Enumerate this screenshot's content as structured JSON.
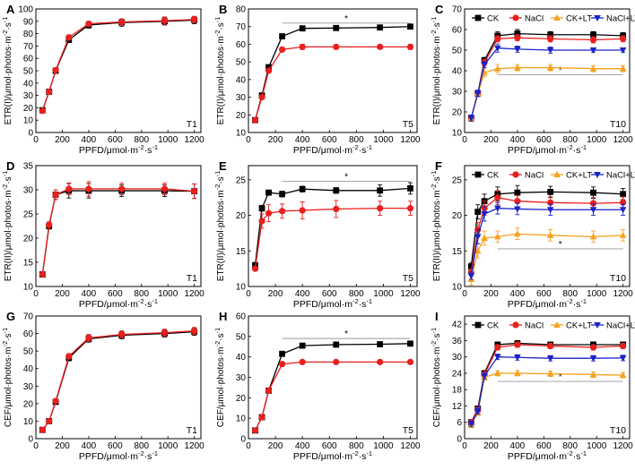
{
  "figure": {
    "colors": {
      "CK": "#000000",
      "NaCl": "#e8201e",
      "CK+LT": "#f5a21f",
      "NaCl+LT": "#1a23c8"
    },
    "markers": {
      "CK": "square",
      "NaCl": "circle",
      "CK+LT": "triangle-up",
      "NaCl+LT": "triangle-down"
    }
  },
  "chart_data": [
    {
      "id": "A",
      "type": "line",
      "panel_label": "A",
      "treatment_label": "T1",
      "xlabel": "PPFD/μmol·m⁻²·s⁻¹",
      "ylabel": "ETR(I)/μmol·photos·m⁻²·s⁻¹",
      "xlim": [
        0,
        1250
      ],
      "ylim": [
        0,
        100
      ],
      "xticks": [
        0,
        200,
        400,
        600,
        800,
        1000,
        1200
      ],
      "yticks": [
        0,
        10,
        20,
        30,
        40,
        50,
        60,
        70,
        80,
        90,
        100
      ],
      "x": [
        50,
        100,
        150,
        250,
        400,
        650,
        975,
        1200
      ],
      "series": [
        {
          "name": "CK",
          "values": [
            18,
            33,
            50,
            75,
            87,
            89,
            90,
            91
          ],
          "errors": [
            1,
            1.5,
            1.5,
            2,
            2.5,
            3,
            3,
            3
          ]
        },
        {
          "name": "NaCl",
          "values": [
            17.5,
            33,
            50.5,
            77,
            88,
            89.5,
            90.5,
            91.5
          ],
          "errors": [
            1,
            1.5,
            1.5,
            2,
            2,
            2.5,
            3,
            2.5
          ]
        }
      ],
      "legend": [],
      "significance": null
    },
    {
      "id": "B",
      "type": "line",
      "panel_label": "B",
      "treatment_label": "T5",
      "xlabel": "PPFD/μmol·m⁻²·s⁻¹",
      "ylabel": "ETR(I)/μmol·photos·m⁻²·s⁻¹",
      "xlim": [
        0,
        1250
      ],
      "ylim": [
        10,
        80
      ],
      "xticks": [
        0,
        200,
        400,
        600,
        800,
        1000,
        1200
      ],
      "yticks": [
        10,
        20,
        30,
        40,
        50,
        60,
        70,
        80
      ],
      "x": [
        50,
        100,
        150,
        250,
        400,
        650,
        975,
        1200
      ],
      "series": [
        {
          "name": "CK",
          "values": [
            17,
            31,
            47,
            64.5,
            69,
            69.2,
            69.5,
            70
          ],
          "errors": [
            0.8,
            1,
            1,
            0.8,
            0.6,
            0.6,
            0.6,
            0.6
          ]
        },
        {
          "name": "NaCl",
          "values": [
            17,
            30,
            45,
            57,
            58.5,
            58.5,
            58.5,
            58.5
          ],
          "errors": [
            0.8,
            1,
            1,
            1.2,
            1.5,
            1.2,
            1.2,
            1.5
          ]
        }
      ],
      "legend": [],
      "significance": {
        "text": "*",
        "x_from": 250,
        "x_to": 1200,
        "y": 72
      }
    },
    {
      "id": "C",
      "type": "line",
      "panel_label": "C",
      "treatment_label": "T10",
      "xlabel": "PPFD/μmol·m⁻²·s⁻¹",
      "ylabel": "ETR(I)/μmol·photos·m⁻²·s⁻¹",
      "xlim": [
        0,
        1250
      ],
      "ylim": [
        10,
        70
      ],
      "xticks": [
        0,
        200,
        400,
        600,
        800,
        1000,
        1200
      ],
      "yticks": [
        10,
        20,
        30,
        40,
        50,
        60,
        70
      ],
      "x": [
        50,
        100,
        150,
        250,
        400,
        650,
        975,
        1200
      ],
      "series": [
        {
          "name": "CK",
          "values": [
            17,
            29,
            45,
            57,
            58,
            57.5,
            57.5,
            57
          ],
          "errors": [
            1.5,
            1.5,
            1.5,
            2,
            2,
            1.5,
            1.5,
            1.5
          ]
        },
        {
          "name": "NaCl",
          "values": [
            17,
            29,
            44,
            55.5,
            56,
            55.5,
            55,
            55.5
          ],
          "errors": [
            1.5,
            1.5,
            1.5,
            1.5,
            1.5,
            1.5,
            1.5,
            1.5
          ]
        },
        {
          "name": "CK+LT",
          "values": [
            17,
            29,
            39,
            41,
            41.5,
            41.5,
            41,
            41
          ],
          "errors": [
            1.5,
            1.5,
            2,
            2,
            1.5,
            1.5,
            1.5,
            1.5
          ]
        },
        {
          "name": "NaCl+LT",
          "values": [
            17,
            29,
            43,
            51,
            50.5,
            50,
            50,
            50
          ],
          "errors": [
            1.5,
            1.5,
            1.5,
            2,
            1.5,
            1.5,
            1,
            1
          ]
        }
      ],
      "legend": [
        "CK",
        "NaCl",
        "CK+LT",
        "NaCl+LT"
      ],
      "significance": {
        "text": "*",
        "x_from": 250,
        "x_to": 1200,
        "y": 38
      }
    },
    {
      "id": "D",
      "type": "line",
      "panel_label": "D",
      "treatment_label": "T1",
      "xlabel": "PPFD/μmol·m⁻²·s⁻¹",
      "ylabel": "ETR(II)/μmol·photos·m⁻²·s⁻¹",
      "xlim": [
        0,
        1250
      ],
      "ylim": [
        10,
        35
      ],
      "xticks": [
        0,
        200,
        400,
        600,
        800,
        1000,
        1200
      ],
      "yticks": [
        10,
        15,
        20,
        25,
        30,
        35
      ],
      "x": [
        50,
        100,
        150,
        250,
        400,
        650,
        975,
        1200
      ],
      "series": [
        {
          "name": "CK",
          "values": [
            12.5,
            22.5,
            29,
            29.8,
            29.8,
            29.8,
            29.8,
            29.7
          ],
          "errors": [
            0.3,
            0.6,
            1,
            1.5,
            1.5,
            1.2,
            1.2,
            1.5
          ]
        },
        {
          "name": "NaCl",
          "values": [
            12.5,
            22.8,
            29,
            30.2,
            30.2,
            30.2,
            30.2,
            29.7
          ],
          "errors": [
            0.3,
            0.6,
            1,
            1.2,
            1.5,
            1.2,
            1.2,
            1.5
          ]
        }
      ],
      "legend": [],
      "significance": null
    },
    {
      "id": "E",
      "type": "line",
      "panel_label": "E",
      "treatment_label": "T5",
      "xlabel": "PPFD/μmol·m⁻²·s⁻¹",
      "ylabel": "ETR(II)/μmol·photos·m⁻²·s⁻¹",
      "xlim": [
        0,
        1250
      ],
      "ylim": [
        10,
        27
      ],
      "xticks": [
        0,
        200,
        400,
        600,
        800,
        1000,
        1200
      ],
      "yticks": [
        10,
        15,
        20,
        25
      ],
      "x": [
        50,
        100,
        150,
        250,
        400,
        650,
        975,
        1200
      ],
      "series": [
        {
          "name": "CK",
          "values": [
            13,
            21,
            23.2,
            23,
            23.7,
            23.5,
            23.5,
            23.8
          ],
          "errors": [
            0.3,
            0.4,
            0.3,
            0.4,
            0.4,
            0.4,
            0.8,
            0.8
          ]
        },
        {
          "name": "NaCl",
          "values": [
            12.5,
            19.2,
            20.3,
            20.6,
            20.7,
            20.9,
            21,
            21
          ],
          "errors": [
            0.3,
            1,
            1.2,
            1,
            1.2,
            1.2,
            1,
            1
          ]
        }
      ],
      "legend": [],
      "significance": {
        "text": "*",
        "x_from": 250,
        "x_to": 1200,
        "y": 24.8
      }
    },
    {
      "id": "F",
      "type": "line",
      "panel_label": "F",
      "treatment_label": "T10",
      "xlabel": "PPFD/μmol·m⁻²·s⁻¹",
      "ylabel": "ETR(II)/μmol·photos·m⁻²·s⁻¹",
      "xlim": [
        0,
        1250
      ],
      "ylim": [
        10,
        27
      ],
      "xticks": [
        0,
        200,
        400,
        600,
        800,
        1000,
        1200
      ],
      "yticks": [
        10,
        15,
        20,
        25
      ],
      "x": [
        50,
        100,
        150,
        250,
        400,
        650,
        975,
        1200
      ],
      "series": [
        {
          "name": "CK",
          "values": [
            12.8,
            20.5,
            22,
            23,
            23.2,
            23.3,
            23.2,
            23
          ],
          "errors": [
            0.5,
            1,
            1,
            1,
            1,
            0.8,
            0.8,
            0.8
          ]
        },
        {
          "name": "NaCl",
          "values": [
            12,
            18,
            21,
            22.5,
            22,
            21.8,
            21.7,
            21.8
          ],
          "errors": [
            0.5,
            1,
            1,
            1,
            0.8,
            0.8,
            0.8,
            0.8
          ]
        },
        {
          "name": "CK+LT",
          "values": [
            11,
            15,
            16.8,
            17,
            17.4,
            17.2,
            17,
            17.2
          ],
          "errors": [
            0.8,
            1,
            1,
            0.8,
            0.8,
            0.8,
            0.8,
            0.8
          ]
        },
        {
          "name": "NaCl+LT",
          "values": [
            11.5,
            17,
            20.2,
            21,
            20.9,
            20.8,
            20.8,
            20.8
          ],
          "errors": [
            0.5,
            1,
            1,
            0.8,
            0.8,
            0.8,
            0.8,
            0.8
          ]
        }
      ],
      "legend": [
        "CK",
        "NaCl",
        "CK+LT",
        "NaCl+LT"
      ],
      "significance": {
        "text": "*",
        "x_from": 250,
        "x_to": 1200,
        "y": 15.3
      }
    },
    {
      "id": "G",
      "type": "line",
      "panel_label": "G",
      "treatment_label": "T1",
      "xlabel": "PPFD/μmol·m⁻²·s⁻¹",
      "ylabel": "CEF/μmol·photos·m⁻²·s⁻¹",
      "xlim": [
        0,
        1250
      ],
      "ylim": [
        0,
        70
      ],
      "xticks": [
        0,
        200,
        400,
        600,
        800,
        1000,
        1200
      ],
      "yticks": [
        0,
        10,
        20,
        30,
        40,
        50,
        60,
        70
      ],
      "x": [
        50,
        100,
        150,
        250,
        400,
        650,
        975,
        1200
      ],
      "series": [
        {
          "name": "CK",
          "values": [
            5,
            10,
            21,
            46,
            57,
            59,
            60,
            61
          ],
          "errors": [
            0.5,
            1,
            1,
            1.5,
            2,
            2,
            2,
            2
          ]
        },
        {
          "name": "NaCl",
          "values": [
            5,
            10,
            21.5,
            47,
            57.5,
            59.5,
            60.5,
            61.5
          ],
          "errors": [
            0.5,
            1,
            1,
            1.5,
            2,
            2,
            2,
            2
          ]
        }
      ],
      "legend": [],
      "significance": null
    },
    {
      "id": "H",
      "type": "line",
      "panel_label": "H",
      "treatment_label": "T5",
      "xlabel": "PPFD/μmol·m⁻²·s⁻¹",
      "ylabel": "CEF/μmol·photos·m⁻²·s⁻¹",
      "xlim": [
        0,
        1250
      ],
      "ylim": [
        0,
        60
      ],
      "xticks": [
        0,
        200,
        400,
        600,
        800,
        1000,
        1200
      ],
      "yticks": [
        0,
        10,
        20,
        30,
        40,
        50,
        60
      ],
      "x": [
        50,
        100,
        150,
        250,
        400,
        650,
        975,
        1200
      ],
      "series": [
        {
          "name": "CK",
          "values": [
            4,
            10.5,
            23.5,
            41.5,
            45.5,
            46,
            46.2,
            46.5
          ],
          "errors": [
            0.5,
            0.8,
            1,
            0.8,
            0.6,
            0.6,
            0.6,
            0.6
          ]
        },
        {
          "name": "NaCl",
          "values": [
            4,
            10.5,
            23.5,
            36.5,
            37.5,
            37.5,
            37.5,
            37.5
          ],
          "errors": [
            0.5,
            0.8,
            1,
            0.8,
            0.6,
            0.6,
            0.6,
            0.6
          ]
        }
      ],
      "legend": [],
      "significance": {
        "text": "*",
        "x_from": 250,
        "x_to": 1200,
        "y": 49
      }
    },
    {
      "id": "I",
      "type": "line",
      "panel_label": "I",
      "treatment_label": "T10",
      "xlabel": "PPFD/μmol·m⁻²·s⁻¹",
      "ylabel": "CEF/μmol·photos·m⁻²·s⁻¹",
      "xlim": [
        0,
        1250
      ],
      "ylim": [
        0,
        45
      ],
      "xticks": [
        0,
        200,
        400,
        600,
        800,
        1000,
        1200
      ],
      "yticks": [
        0,
        6,
        12,
        18,
        24,
        30,
        36,
        42
      ],
      "x": [
        50,
        100,
        150,
        250,
        400,
        650,
        975,
        1200
      ],
      "series": [
        {
          "name": "CK",
          "values": [
            6,
            11,
            24,
            34.5,
            35,
            34.5,
            34.5,
            34.5
          ],
          "errors": [
            1,
            1,
            1,
            1,
            1,
            1,
            1,
            1
          ]
        },
        {
          "name": "NaCl",
          "values": [
            6,
            10.5,
            23.5,
            33.5,
            34.5,
            34,
            33.5,
            34
          ],
          "errors": [
            1,
            1,
            1,
            1,
            1,
            1,
            1,
            1
          ]
        },
        {
          "name": "CK+LT",
          "values": [
            5,
            9.5,
            22.5,
            24,
            24,
            23.8,
            23.5,
            23.3
          ],
          "errors": [
            1,
            1,
            1,
            1,
            1,
            1,
            1,
            1
          ]
        },
        {
          "name": "NaCl+LT",
          "values": [
            5.5,
            10,
            23,
            30,
            29.8,
            29.5,
            29.5,
            29.6
          ],
          "errors": [
            1,
            1,
            1,
            1,
            1,
            1,
            1,
            1
          ]
        }
      ],
      "legend": [
        "CK",
        "NaCl",
        "CK+LT",
        "NaCl+LT"
      ],
      "significance": {
        "text": "*",
        "x_from": 250,
        "x_to": 1200,
        "y": 21
      }
    }
  ]
}
